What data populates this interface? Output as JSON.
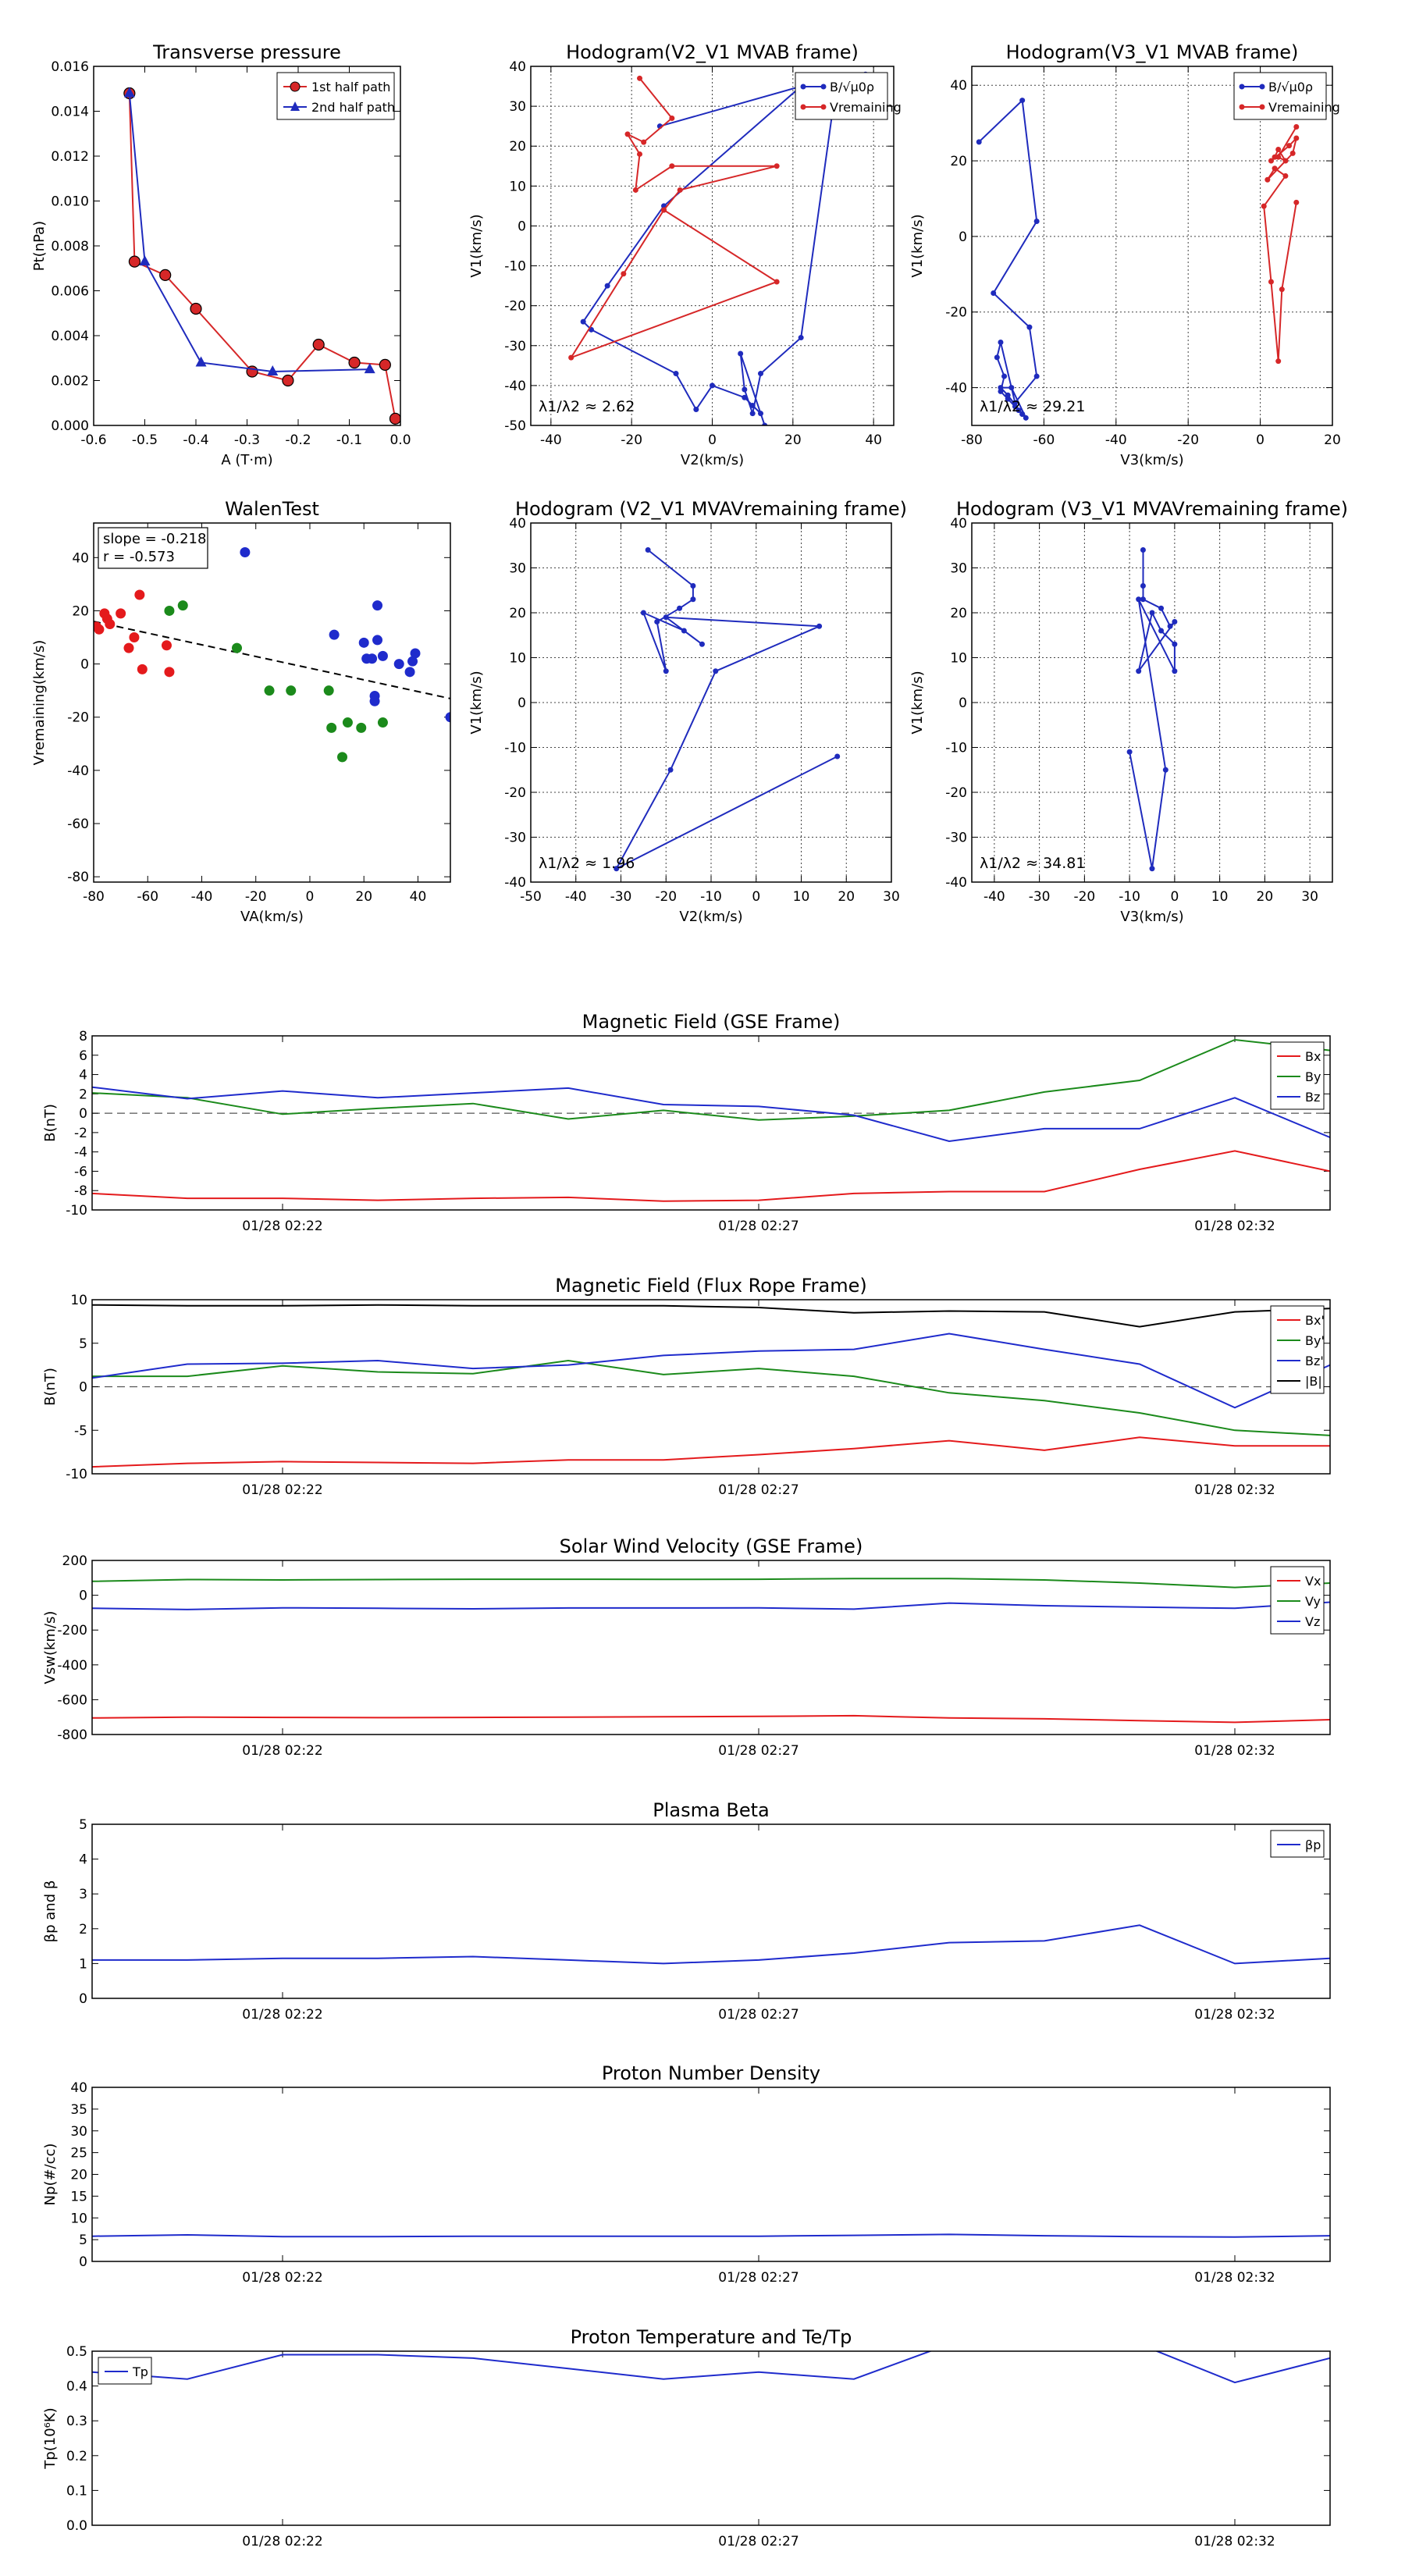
{
  "chart_data": [
    {
      "id": "tp",
      "type": "line",
      "title": "Transverse pressure",
      "xlabel": "A (T·m)",
      "ylabel": "Pt(nPa)",
      "xlim": [
        -0.6,
        0.0
      ],
      "ylim": [
        0,
        0.016
      ],
      "xticks": [
        -0.6,
        -0.5,
        -0.4,
        -0.3,
        -0.2,
        -0.1,
        0.0
      ],
      "yticks": [
        0.0,
        0.002,
        0.004,
        0.006,
        0.008,
        0.01,
        0.012,
        0.014,
        0.016
      ],
      "ytick_decimals": 3,
      "xtick_decimals": 1,
      "grid": false,
      "legend": "top-right",
      "series": [
        {
          "name": "1st half path",
          "color": "#d62728",
          "marker": "circle",
          "x": [
            -0.53,
            -0.52,
            -0.46,
            -0.4,
            -0.29,
            -0.22,
            -0.16,
            -0.09,
            -0.03,
            -0.01
          ],
          "y": [
            0.0148,
            0.0073,
            0.0067,
            0.0052,
            0.0024,
            0.002,
            0.0036,
            0.0028,
            0.0027,
            0.0003
          ]
        },
        {
          "name": "2nd half path",
          "color": "#1f2bbd",
          "marker": "triangle",
          "x": [
            -0.53,
            -0.5,
            -0.39,
            -0.25,
            -0.06
          ],
          "y": [
            0.0148,
            0.0073,
            0.0028,
            0.0024,
            0.0025
          ]
        }
      ]
    },
    {
      "id": "hodo1",
      "type": "line",
      "title": "Hodogram(V2_V1 MVAB frame)",
      "xlabel": "V2(km/s)",
      "ylabel": "V1(km/s)",
      "xlim": [
        -45,
        45
      ],
      "ylim": [
        -50,
        40
      ],
      "xticks": [
        -40,
        -20,
        0,
        20,
        40
      ],
      "yticks": [
        -50,
        -40,
        -30,
        -20,
        -10,
        0,
        10,
        20,
        30,
        40
      ],
      "grid": true,
      "legend": "top-right",
      "annotation": "λ1/λ2 ≈ 2.62",
      "series": [
        {
          "name": "B/√μ0ρ",
          "color": "#1f2bbd",
          "marker": "dot",
          "x": [
            -13,
            22,
            -12,
            -26,
            -32,
            -30,
            -9,
            -4,
            0,
            8,
            10,
            12,
            13,
            7,
            8,
            10,
            12,
            22,
            30,
            38
          ],
          "y": [
            25,
            35,
            5,
            -15,
            -24,
            -26,
            -37,
            -46,
            -40,
            -43,
            -45,
            -47,
            -50,
            -32,
            -41,
            -47,
            -37,
            -28,
            30,
            38
          ]
        },
        {
          "name": "Vremaining",
          "color": "#d62728",
          "marker": "dot",
          "x": [
            -18,
            -10,
            -17,
            -21,
            -18,
            -19,
            -10,
            16,
            -8,
            -12,
            -22,
            -35,
            16,
            -12
          ],
          "y": [
            37,
            27,
            21,
            23,
            18,
            9,
            15,
            15,
            9,
            4,
            -12,
            -33,
            -14,
            4
          ]
        }
      ]
    },
    {
      "id": "hodo2",
      "type": "line",
      "title": "Hodogram(V3_V1 MVAB frame)",
      "xlabel": "V3(km/s)",
      "ylabel": "V1(km/s)",
      "xlim": [
        -80,
        20
      ],
      "ylim": [
        -50,
        45
      ],
      "xticks": [
        -80,
        -60,
        -40,
        -20,
        0,
        20
      ],
      "yticks": [
        -40,
        -20,
        0,
        20,
        40
      ],
      "grid": true,
      "legend": "top-right",
      "annotation": "λ1/λ2 ≈ 29.21",
      "series": [
        {
          "name": "B/√μ0ρ",
          "color": "#1f2bbd",
          "marker": "dot",
          "x": [
            -78,
            -66,
            -62,
            -74,
            -64,
            -62,
            -68,
            -72,
            -73,
            -71,
            -72,
            -70,
            -68,
            -67,
            -66,
            -65,
            -69,
            -72,
            -70,
            -66
          ],
          "y": [
            25,
            36,
            4,
            -15,
            -24,
            -37,
            -44,
            -28,
            -32,
            -37,
            -41,
            -43,
            -45,
            -46,
            -47,
            -48,
            -40,
            -40,
            -42,
            -47
          ]
        },
        {
          "name": "Vremaining",
          "color": "#d62728",
          "marker": "dot",
          "x": [
            10,
            5,
            7,
            5,
            4,
            3,
            8,
            10,
            9,
            2,
            4,
            7,
            1,
            3,
            5,
            6,
            10
          ],
          "y": [
            29,
            21,
            20,
            23,
            21,
            20,
            24,
            26,
            22,
            15,
            18,
            16,
            8,
            -12,
            -33,
            -14,
            9
          ]
        }
      ]
    },
    {
      "id": "walen",
      "type": "scatter",
      "title": "WalenTest",
      "xlabel": "VA(km/s)",
      "ylabel": "Vremaining(km/s)",
      "xlim": [
        -80,
        52
      ],
      "ylim": [
        -82,
        53
      ],
      "xticks": [
        -80,
        -60,
        -40,
        -20,
        0,
        20,
        40
      ],
      "yticks": [
        -80,
        -60,
        -40,
        -20,
        0,
        20,
        40
      ],
      "grid": false,
      "legend_text": [
        "slope = -0.218",
        "r = -0.573"
      ],
      "fit_line": {
        "x": [
          -80,
          52
        ],
        "y": [
          16,
          -13
        ]
      },
      "series": [
        {
          "color": "#e41a1c",
          "x": [
            -79,
            -78,
            -76,
            -75,
            -74,
            -70,
            -67,
            -65,
            -63,
            -62,
            -53,
            -52
          ],
          "y": [
            14,
            13,
            19,
            17,
            15,
            19,
            6,
            10,
            26,
            -2,
            7,
            -3
          ]
        },
        {
          "color": "#1b8a1b",
          "x": [
            -52,
            -47,
            -27,
            -15,
            -7,
            7,
            8,
            12,
            14,
            19,
            27
          ],
          "y": [
            20,
            22,
            6,
            -10,
            -10,
            -10,
            -24,
            -35,
            -22,
            -24,
            -22
          ]
        },
        {
          "color": "#1f2bcc",
          "x": [
            -24,
            9,
            20,
            21,
            23,
            24,
            24,
            25,
            25,
            27,
            33,
            37,
            38,
            39,
            52
          ],
          "y": [
            42,
            11,
            8,
            2,
            2,
            -12,
            -14,
            9,
            22,
            3,
            0,
            -3,
            1,
            4,
            -20
          ]
        }
      ]
    },
    {
      "id": "hodo3",
      "type": "line",
      "title": "Hodogram (V2_V1 MVAVremaining frame)",
      "xlabel": "V2(km/s)",
      "ylabel": "V1(km/s)",
      "xlim": [
        -50,
        30
      ],
      "ylim": [
        -40,
        40
      ],
      "xticks": [
        -50,
        -40,
        -30,
        -20,
        -10,
        0,
        10,
        20,
        30
      ],
      "yticks": [
        -40,
        -30,
        -20,
        -10,
        0,
        10,
        20,
        30,
        40
      ],
      "grid": true,
      "annotation": "λ1/λ2 ≈ 1.96",
      "series": [
        {
          "color": "#1f2bbd",
          "marker": "dot",
          "x": [
            -24,
            -14,
            -14,
            -17,
            -22,
            -20,
            -25,
            -16,
            -12,
            -20,
            14,
            -9,
            -19,
            -31,
            18
          ],
          "y": [
            34,
            26,
            23,
            21,
            18,
            7,
            20,
            16,
            13,
            19,
            17,
            7,
            -15,
            -37,
            -12
          ]
        }
      ]
    },
    {
      "id": "hodo4",
      "type": "line",
      "title": "Hodogram (V3_V1 MVAVremaining frame)",
      "xlabel": "V3(km/s)",
      "ylabel": "V1(km/s)",
      "xlim": [
        -45,
        35
      ],
      "ylim": [
        -40,
        40
      ],
      "xticks": [
        -40,
        -30,
        -20,
        -10,
        0,
        10,
        20,
        30
      ],
      "yticks": [
        -40,
        -30,
        -20,
        -10,
        0,
        10,
        20,
        30,
        40
      ],
      "grid": true,
      "annotation": "λ1/λ2 ≈ 34.81",
      "series": [
        {
          "color": "#1f2bbd",
          "marker": "dot",
          "x": [
            -7,
            -7,
            -7,
            -3,
            -1,
            0,
            -8,
            -5,
            -3,
            0,
            0,
            -8,
            -2,
            -5,
            -10
          ],
          "y": [
            34,
            26,
            23,
            21,
            17,
            18,
            7,
            20,
            16,
            13,
            7,
            23,
            -15,
            -37,
            -11
          ]
        }
      ]
    },
    {
      "id": "bgse",
      "type": "line",
      "title": "Magnetic Field (GSE Frame)",
      "ylabel": "B(nT)",
      "ylim": [
        -10,
        8
      ],
      "yticks": [
        -10,
        -8,
        -6,
        -4,
        -2,
        0,
        2,
        4,
        6,
        8
      ],
      "xticklabels": [
        "01/28 02:22",
        "01/28 02:27",
        "01/28 02:32"
      ],
      "xtick_pos": [
        2,
        7,
        12
      ],
      "x": [
        0,
        1,
        2,
        3,
        4,
        5,
        6,
        7,
        8,
        9,
        10,
        11,
        12,
        13
      ],
      "zero_line": true,
      "legend": "top-right",
      "series": [
        {
          "name": "Bx",
          "color": "#e41a1c",
          "values": [
            -8.3,
            -8.8,
            -8.8,
            -9.0,
            -8.8,
            -8.7,
            -9.1,
            -9.0,
            -8.3,
            -8.1,
            -8.1,
            -5.8,
            -3.9,
            -6.0
          ]
        },
        {
          "name": "By",
          "color": "#1b8a1b",
          "values": [
            2.1,
            1.6,
            -0.1,
            0.5,
            1.0,
            -0.6,
            0.3,
            -0.7,
            -0.3,
            0.3,
            2.2,
            3.4,
            7.6,
            6.5
          ]
        },
        {
          "name": "Bz",
          "color": "#1f2bcc",
          "values": [
            2.7,
            1.5,
            2.3,
            1.6,
            2.1,
            2.6,
            0.9,
            0.7,
            -0.2,
            -2.9,
            -1.6,
            -1.6,
            1.6,
            -2.5
          ]
        }
      ]
    },
    {
      "id": "bfr",
      "type": "line",
      "title": "Magnetic Field (Flux Rope Frame)",
      "ylabel": "B(nT)",
      "ylim": [
        -10,
        10
      ],
      "yticks": [
        -10,
        -5,
        0,
        5,
        10
      ],
      "xticklabels": [
        "01/28 02:22",
        "01/28 02:27",
        "01/28 02:32"
      ],
      "xtick_pos": [
        2,
        7,
        12
      ],
      "x": [
        0,
        1,
        2,
        3,
        4,
        5,
        6,
        7,
        8,
        9,
        10,
        11,
        12,
        13
      ],
      "zero_line": true,
      "legend": "top-right",
      "series": [
        {
          "name": "Bx'",
          "color": "#e41a1c",
          "values": [
            -9.2,
            -8.8,
            -8.6,
            -8.7,
            -8.8,
            -8.4,
            -8.4,
            -7.8,
            -7.1,
            -6.2,
            -7.3,
            -5.8,
            -6.8,
            -6.8
          ]
        },
        {
          "name": "By'",
          "color": "#1b8a1b",
          "values": [
            1.2,
            1.2,
            2.4,
            1.7,
            1.5,
            3.0,
            1.4,
            2.1,
            1.2,
            -0.7,
            -1.6,
            -3.0,
            -5.0,
            -5.6
          ]
        },
        {
          "name": "Bz'",
          "color": "#1f2bcc",
          "values": [
            1.0,
            2.6,
            2.7,
            3.0,
            2.1,
            2.5,
            3.6,
            4.1,
            4.3,
            6.1,
            4.3,
            2.6,
            -2.4,
            2.5
          ]
        },
        {
          "name": "|B|",
          "color": "#000000",
          "values": [
            9.4,
            9.3,
            9.3,
            9.4,
            9.3,
            9.3,
            9.3,
            9.1,
            8.5,
            8.7,
            8.6,
            6.9,
            8.6,
            9.0
          ]
        }
      ]
    },
    {
      "id": "vsw",
      "type": "line",
      "title": "Solar Wind Velocity (GSE Frame)",
      "ylabel": "Vsw(km/s)",
      "ylim": [
        -800,
        200
      ],
      "yticks": [
        -800,
        -600,
        -400,
        -200,
        0,
        200
      ],
      "xticklabels": [
        "01/28 02:22",
        "01/28 02:27",
        "01/28 02:32"
      ],
      "xtick_pos": [
        2,
        7,
        12
      ],
      "x": [
        0,
        1,
        2,
        3,
        4,
        5,
        6,
        7,
        8,
        9,
        10,
        11,
        12,
        13
      ],
      "legend": "top-right",
      "series": [
        {
          "name": "Vx",
          "color": "#e41a1c",
          "values": [
            -705,
            -700,
            -702,
            -703,
            -702,
            -700,
            -698,
            -696,
            -692,
            -705,
            -710,
            -720,
            -730,
            -715
          ]
        },
        {
          "name": "Vy",
          "color": "#1b8a1b",
          "values": [
            80,
            90,
            88,
            90,
            92,
            92,
            91,
            92,
            96,
            96,
            88,
            70,
            45,
            70
          ]
        },
        {
          "name": "Vz",
          "color": "#1f2bcc",
          "values": [
            -75,
            -82,
            -72,
            -75,
            -78,
            -73,
            -73,
            -72,
            -80,
            -45,
            -60,
            -68,
            -75,
            -40
          ]
        }
      ]
    },
    {
      "id": "beta",
      "type": "line",
      "title": "Plasma Beta",
      "ylabel": "βp and β",
      "ylim": [
        0,
        5
      ],
      "yticks": [
        0,
        1,
        2,
        3,
        4,
        5
      ],
      "xticklabels": [
        "01/28 02:22",
        "01/28 02:27",
        "01/28 02:32"
      ],
      "xtick_pos": [
        2,
        7,
        12
      ],
      "x": [
        0,
        1,
        2,
        3,
        4,
        5,
        6,
        7,
        8,
        9,
        10,
        11,
        12,
        13
      ],
      "legend": "top-right",
      "series": [
        {
          "name": "βp",
          "color": "#1f2bcc",
          "values": [
            1.1,
            1.1,
            1.15,
            1.15,
            1.2,
            1.1,
            1.0,
            1.1,
            1.3,
            1.6,
            1.65,
            2.1,
            1.0,
            1.15
          ]
        }
      ]
    },
    {
      "id": "np",
      "type": "line",
      "title": "Proton Number Density",
      "ylabel": "Np(#/cc)",
      "ylim": [
        0,
        40
      ],
      "yticks": [
        0,
        5,
        10,
        15,
        20,
        25,
        30,
        35,
        40
      ],
      "xticklabels": [
        "01/28 02:22",
        "01/28 02:27",
        "01/28 02:32"
      ],
      "xtick_pos": [
        2,
        7,
        12
      ],
      "x": [
        0,
        1,
        2,
        3,
        4,
        5,
        6,
        7,
        8,
        9,
        10,
        11,
        12,
        13
      ],
      "series": [
        {
          "color": "#1f2bcc",
          "values": [
            5.8,
            6.1,
            5.7,
            5.7,
            5.8,
            5.8,
            5.8,
            5.8,
            6.0,
            6.2,
            5.9,
            5.7,
            5.6,
            5.9
          ]
        }
      ]
    },
    {
      "id": "tpr",
      "type": "line",
      "title": "Proton Temperature and Te/Tp",
      "ylabel": "Tp(10⁶K)",
      "ylim": [
        0,
        0.5
      ],
      "yticks": [
        0.0,
        0.1,
        0.2,
        0.3,
        0.4,
        0.5
      ],
      "ytick_decimals": 1,
      "xticklabels": [
        "01/28 02:22",
        "01/28 02:27",
        "01/28 02:32"
      ],
      "xtick_pos": [
        2,
        7,
        12
      ],
      "x": [
        0,
        1,
        2,
        3,
        4,
        5,
        6,
        7,
        8,
        9,
        10,
        11,
        12,
        13
      ],
      "legend": "top-left",
      "series": [
        {
          "name": "Tp",
          "color": "#1f2bcc",
          "values": [
            0.44,
            0.42,
            0.49,
            0.49,
            0.48,
            0.45,
            0.42,
            0.44,
            0.42,
            0.52,
            0.53,
            0.52,
            0.41,
            0.48
          ]
        }
      ]
    }
  ]
}
